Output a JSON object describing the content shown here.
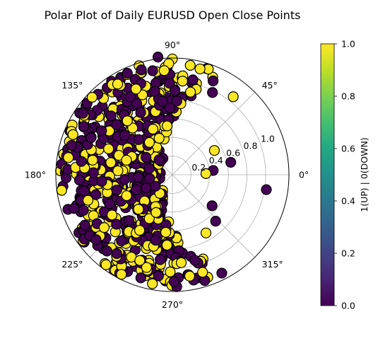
{
  "chart_data": {
    "type": "scatter",
    "projection": "polar",
    "title": "Polar Plot of Daily EURUSD Open Close Points",
    "angle_ticks": [
      "0°",
      "45°",
      "90°",
      "135°",
      "180°",
      "225°",
      "270°",
      "315°"
    ],
    "angle_tick_degrees": [
      0,
      45,
      90,
      135,
      180,
      225,
      270,
      315
    ],
    "radial_ticks": [
      "0.2",
      "0.4",
      "0.6",
      "0.8",
      "1.0"
    ],
    "radial_tick_values": [
      0.2,
      0.4,
      0.6,
      0.8,
      1.0
    ],
    "rlim": [
      0,
      1.25
    ],
    "grid": true,
    "marker": "circle",
    "color_scale": "viridis",
    "colorbar": {
      "label": "1(UP) | 0(DOWN)",
      "range": [
        0.0,
        1.0
      ],
      "ticks": [
        "0.0",
        "0.2",
        "0.4",
        "0.6",
        "0.8",
        "1.0"
      ],
      "tick_values": [
        0.0,
        0.2,
        0.4,
        0.6,
        0.8,
        1.0
      ]
    },
    "colors": {
      "up": "#fde725",
      "down": "#440154"
    },
    "sample_points": [
      {
        "theta_deg": 90,
        "r": 1.24,
        "c": 1
      },
      {
        "theta_deg": 97,
        "r": 1.27,
        "c": 0
      },
      {
        "theta_deg": 107,
        "r": 1.22,
        "c": 1
      },
      {
        "theta_deg": 118,
        "r": 1.18,
        "c": 0
      },
      {
        "theta_deg": 52,
        "r": 1.06,
        "c": 1
      },
      {
        "theta_deg": 64,
        "r": 0.98,
        "c": 0
      },
      {
        "theta_deg": 78,
        "r": 0.88,
        "c": 1
      },
      {
        "theta_deg": 30,
        "r": 0.52,
        "c": 1
      },
      {
        "theta_deg": 12,
        "r": 0.64,
        "c": 0
      },
      {
        "theta_deg": 6,
        "r": 0.44,
        "c": 0
      },
      {
        "theta_deg": 2,
        "r": 0.36,
        "c": 1
      },
      {
        "theta_deg": -9,
        "r": 1.02,
        "c": 0
      },
      {
        "theta_deg": -38,
        "r": 0.54,
        "c": 0
      },
      {
        "theta_deg": -47,
        "r": 0.68,
        "c": 0
      },
      {
        "theta_deg": -60,
        "r": 0.72,
        "c": 1
      },
      {
        "theta_deg": -70,
        "r": 0.96,
        "c": 1
      },
      {
        "theta_deg": -85,
        "r": 0.88,
        "c": 0
      },
      {
        "theta_deg": -97,
        "r": 0.9,
        "c": 0
      },
      {
        "theta_deg": -105,
        "r": 1.12,
        "c": 1
      },
      {
        "theta_deg": -112,
        "r": 1.06,
        "c": 0
      },
      {
        "theta_deg": -120,
        "r": 1.08,
        "c": 1
      },
      {
        "theta_deg": -130,
        "r": 1.02,
        "c": 1
      },
      {
        "theta_deg": -140,
        "r": 1.06,
        "c": 0
      },
      {
        "theta_deg": -148,
        "r": 1.0,
        "c": 1
      },
      {
        "theta_deg": -158,
        "r": 1.06,
        "c": 0
      },
      {
        "theta_deg": 150,
        "r": 1.1,
        "c": 0
      },
      {
        "theta_deg": 160,
        "r": 1.14,
        "c": 1
      },
      {
        "theta_deg": 170,
        "r": 1.18,
        "c": 0
      },
      {
        "theta_deg": 178,
        "r": 1.2,
        "c": 1
      },
      {
        "theta_deg": 186,
        "r": 1.18,
        "c": 0
      }
    ]
  }
}
